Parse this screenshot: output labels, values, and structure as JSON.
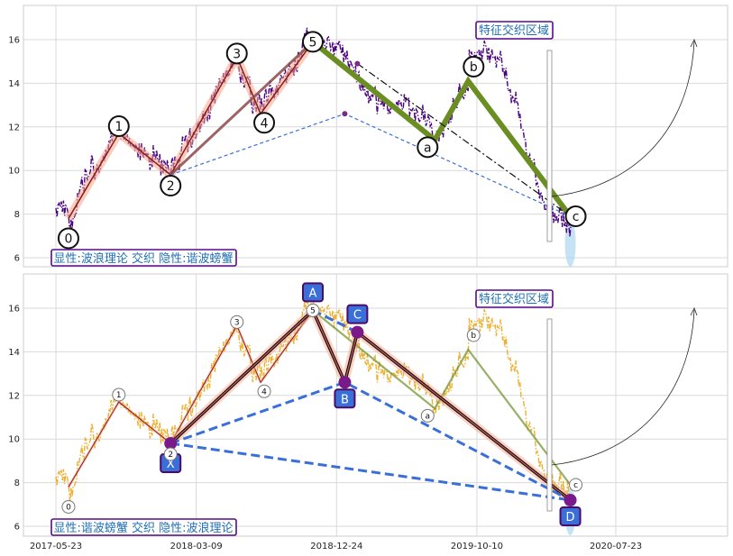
{
  "chart_data": [
    {
      "type": "line",
      "panel": "top",
      "ylim": [
        5.6,
        17.5
      ],
      "yticks": [
        6,
        8,
        10,
        12,
        14,
        16
      ],
      "grid": true,
      "region_label": "特征交织区域",
      "caption": "显性:波浪理论 交织 隐性:谐波螃蟹",
      "wave_points": [
        {
          "label": "0",
          "x": "2017-06-18",
          "y": 7.8
        },
        {
          "label": "1",
          "x": "2017-09-30",
          "y": 11.7
        },
        {
          "label": "2",
          "x": "2018-01-15",
          "y": 9.8
        },
        {
          "label": "3",
          "x": "2018-06-01",
          "y": 15.2
        },
        {
          "label": "4",
          "x": "2018-07-20",
          "y": 12.6
        },
        {
          "label": "5",
          "x": "2018-11-05",
          "y": 15.9
        },
        {
          "label": "a",
          "x": "2019-07-15",
          "y": 11.4
        },
        {
          "label": "b",
          "x": "2019-09-22",
          "y": 14.1
        },
        {
          "label": "c",
          "x": "2020-04-20",
          "y": 7.9
        }
      ]
    },
    {
      "type": "line",
      "panel": "bottom",
      "ylim": [
        5.6,
        17.5
      ],
      "yticks": [
        6,
        8,
        10,
        12,
        14,
        16
      ],
      "grid": true,
      "region_label": "特征交织区域",
      "caption": "显性:谐波螃蟹 交织 隐性:波浪理论",
      "xticks": [
        "2017-05-23",
        "2018-03-09",
        "2018-12-24",
        "2019-10-10",
        "2020-07-23"
      ],
      "harmonic_points": [
        {
          "label": "X",
          "x": "2018-01-15",
          "y": 9.8
        },
        {
          "label": "A",
          "x": "2018-11-05",
          "y": 15.9
        },
        {
          "label": "B",
          "x": "2019-01-10",
          "y": 12.6
        },
        {
          "label": "C",
          "x": "2019-02-05",
          "y": 14.9
        },
        {
          "label": "D",
          "x": "2020-04-20",
          "y": 7.2
        }
      ],
      "wave_points": [
        {
          "label": "0",
          "x": "2017-06-18",
          "y": 7.8
        },
        {
          "label": "1",
          "x": "2017-09-30",
          "y": 11.7
        },
        {
          "label": "2",
          "x": "2018-01-15",
          "y": 9.8
        },
        {
          "label": "3",
          "x": "2018-06-01",
          "y": 15.2
        },
        {
          "label": "4",
          "x": "2018-07-20",
          "y": 12.6
        },
        {
          "label": "5",
          "x": "2018-11-05",
          "y": 15.9
        },
        {
          "label": "a",
          "x": "2019-07-15",
          "y": 11.4
        },
        {
          "label": "b",
          "x": "2019-09-22",
          "y": 14.1
        },
        {
          "label": "c",
          "x": "2020-04-20",
          "y": 7.9
        }
      ]
    }
  ],
  "colors": {
    "top_price": "#4b0082",
    "bottom_price": "#eeb030",
    "wave_thick": "#6b8e23",
    "harmonic_dash": "#3a6fd8",
    "box_fill": "#3a6fd8",
    "caption_border": "#5a0b8a",
    "title_text": "#1f6fb4",
    "highlight_band": "#f4a58a",
    "ellipse_fill": "#9fd0ee"
  }
}
